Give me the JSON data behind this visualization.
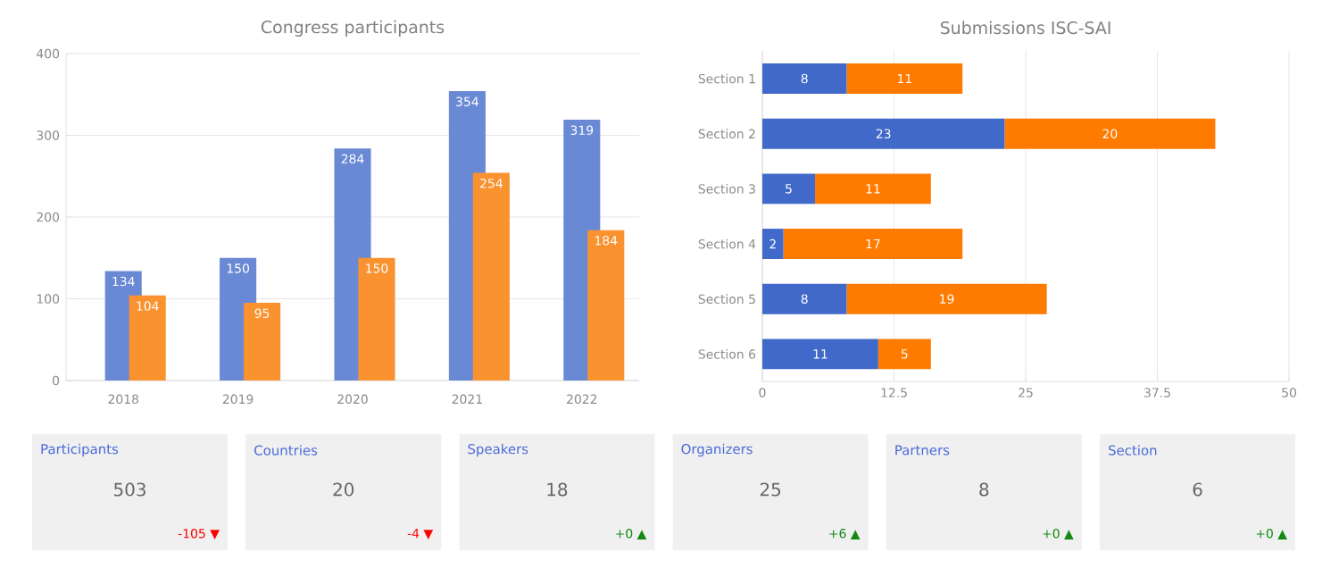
{
  "chart_data": [
    {
      "type": "bar",
      "title": "Congress participants",
      "categories": [
        "2018",
        "2019",
        "2020",
        "2021",
        "2022"
      ],
      "series": [
        {
          "color": "#6a89d5",
          "values": [
            134,
            150,
            284,
            354,
            319
          ]
        },
        {
          "color": "#f9922f",
          "values": [
            104,
            95,
            150,
            254,
            184
          ]
        }
      ],
      "ylim": [
        0,
        400
      ],
      "yticks": [
        0,
        100,
        200,
        300,
        400
      ],
      "grid": "y",
      "data_labels": true
    },
    {
      "type": "bar",
      "title": "Submissions ISC-SAI",
      "orientation": "horizontal",
      "stacked": true,
      "categories": [
        "Section 1",
        "Section 2",
        "Section 3",
        "Section 4",
        "Section 5",
        "Section 6"
      ],
      "series": [
        {
          "color": "#4169c9",
          "values": [
            8,
            23,
            5,
            2,
            8,
            11
          ]
        },
        {
          "color": "#ff7b00",
          "values": [
            11,
            20,
            11,
            17,
            19,
            5
          ]
        }
      ],
      "xlim": [
        0,
        50
      ],
      "xticks": [
        0,
        12.5,
        25,
        37.5,
        50
      ],
      "grid": "x",
      "data_labels": true
    },
    {
      "type": "other",
      "annotations": [
        "Participants",
        "503",
        "-105 ▼",
        "Countries",
        "20",
        "-4 ▼",
        "Speakers",
        "18",
        "+0 ▲",
        "Organizers",
        "25",
        "+6 ▲",
        "Partners",
        "8",
        "+0 ▲",
        "Section",
        "6",
        "+0 ▲"
      ]
    }
  ]
}
